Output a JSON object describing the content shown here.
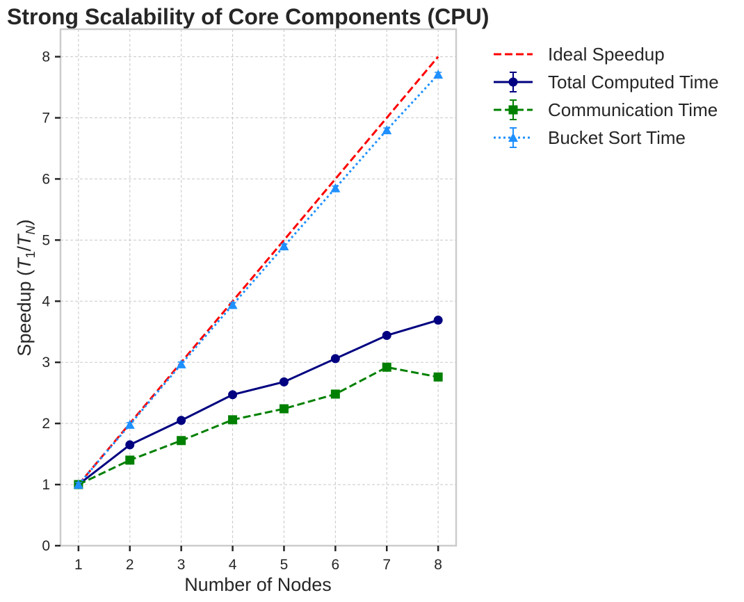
{
  "chart_data": {
    "type": "line",
    "title": "Strong Scalability of Core Components (CPU)",
    "xlabel": "Number of Nodes",
    "ylabel_prefix": "Speedup (",
    "ylabel_T": "T",
    "ylabel_sub1": "1",
    "ylabel_slash": "/",
    "ylabel_subN": "N",
    "ylabel_suffix": ")",
    "x": [
      1,
      2,
      3,
      4,
      5,
      6,
      7,
      8
    ],
    "x_ticks": [
      "1",
      "2",
      "3",
      "4",
      "5",
      "6",
      "7",
      "8"
    ],
    "y_ticks": [
      "0",
      "1",
      "2",
      "3",
      "4",
      "5",
      "6",
      "7",
      "8"
    ],
    "xlim": [
      0.65,
      8.35
    ],
    "ylim": [
      0,
      8.45
    ],
    "grid": true,
    "legend_position": "outside-top-right",
    "series": [
      {
        "name": "Ideal Speedup",
        "color": "#ff0000",
        "style": "dashed",
        "marker": "none",
        "values": [
          1,
          2,
          3,
          4,
          5,
          6,
          7,
          8
        ]
      },
      {
        "name": "Total Computed Time",
        "color": "#000080",
        "style": "solid",
        "marker": "circle",
        "values": [
          1.0,
          1.65,
          2.05,
          2.47,
          2.68,
          3.06,
          3.44,
          3.69
        ]
      },
      {
        "name": "Communication Time",
        "color": "#008000",
        "style": "dashed",
        "marker": "square",
        "values": [
          1.0,
          1.4,
          1.72,
          2.06,
          2.24,
          2.48,
          2.92,
          2.76
        ]
      },
      {
        "name": "Bucket Sort Time",
        "color": "#1e90ff",
        "style": "dotted",
        "marker": "triangle",
        "values": [
          1.0,
          1.98,
          2.97,
          3.94,
          4.9,
          5.85,
          6.8,
          7.71
        ]
      }
    ]
  }
}
